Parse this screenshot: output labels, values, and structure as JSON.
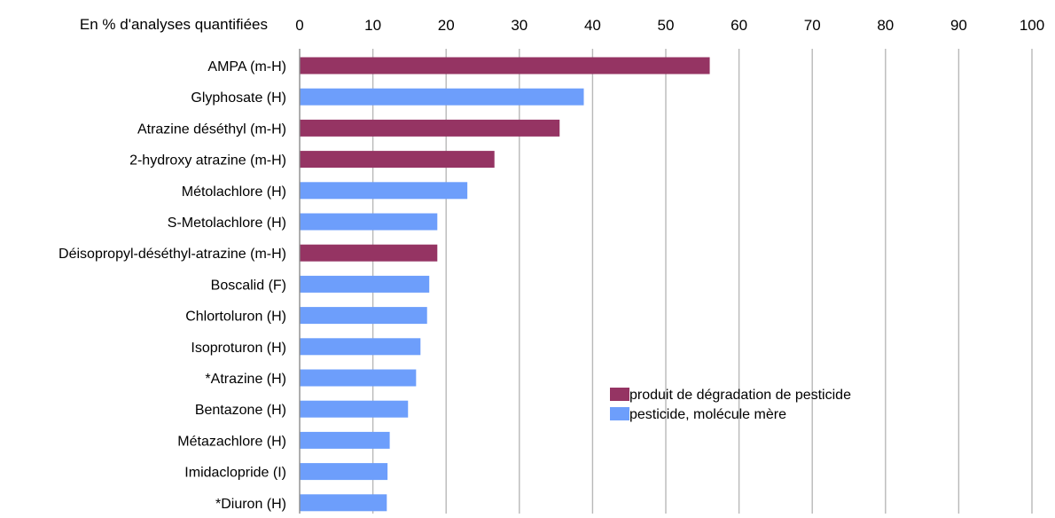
{
  "chart_data": {
    "type": "bar",
    "orientation": "horizontal",
    "axis_caption": "En % d'analyses quantifiées",
    "xlim": [
      0,
      100
    ],
    "x_ticks": [
      0,
      10,
      20,
      30,
      40,
      50,
      60,
      70,
      80,
      90,
      100
    ],
    "grid": true,
    "legend_position": "bottom-right",
    "categories": [
      "AMPA (m-H)",
      "Glyphosate (H)",
      "Atrazine déséthyl (m-H)",
      "2-hydroxy atrazine (m-H)",
      "Métolachlore (H)",
      "S-Metolachlore (H)",
      "Déisopropyl-déséthyl-atrazine (m-H)",
      "Boscalid (F)",
      "Chlortoluron (H)",
      "Isoproturon (H)",
      "*Atrazine (H)",
      "Bentazone (H)",
      "Métazachlore (H)",
      "Imidaclopride (I)",
      "*Diuron (H)"
    ],
    "values": [
      56,
      38.8,
      35.5,
      26.6,
      22.9,
      18.8,
      18.8,
      17.7,
      17.4,
      16.5,
      15.9,
      14.8,
      12.3,
      12.0,
      11.9
    ],
    "series_of_category": [
      "degradation",
      "parent",
      "degradation",
      "degradation",
      "parent",
      "parent",
      "degradation",
      "parent",
      "parent",
      "parent",
      "parent",
      "parent",
      "parent",
      "parent",
      "parent"
    ],
    "legend": [
      {
        "key": "degradation",
        "label": "produit de dégradation de pesticide",
        "color": "#953463"
      },
      {
        "key": "parent",
        "label": "pesticide, molécule mère",
        "color": "#6d9efb"
      }
    ],
    "colors": {
      "grid": "#b8b8b8",
      "axis": "#8c8c8c",
      "text": "#000000"
    }
  }
}
